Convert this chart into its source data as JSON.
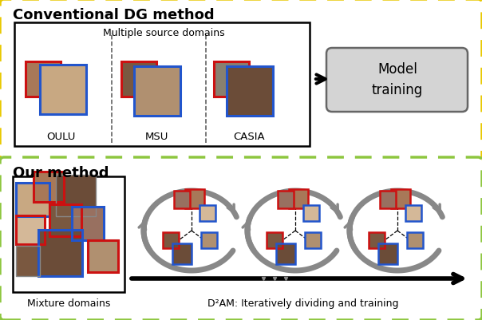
{
  "title_top": "Conventional DG method",
  "title_bottom": "Our method",
  "top_border_color": "#E8C800",
  "bottom_border_color": "#8DC63F",
  "model_box_color": "#D4D4D4",
  "model_text": "Model\ntraining",
  "domains_text": "Multiple source domains",
  "domain_labels": [
    "OULU",
    "MSU",
    "CASIA"
  ],
  "bottom_label": "Mixture domains",
  "bottom_desc": "D²AM: Iteratively dividing and training",
  "red_color": "#CC1111",
  "blue_color": "#2255CC",
  "arrow_color": "#888888",
  "arrow_dark": "#333333",
  "bg_color": "#FFFFFF",
  "face_colors": {
    "skin1": "#C8A882",
    "skin2": "#A87858",
    "skin3": "#7A5840",
    "skin4": "#D4B898",
    "skin5": "#6B4C38",
    "skin6": "#B09070",
    "skin7": "#987060",
    "skin8": "#888070"
  }
}
